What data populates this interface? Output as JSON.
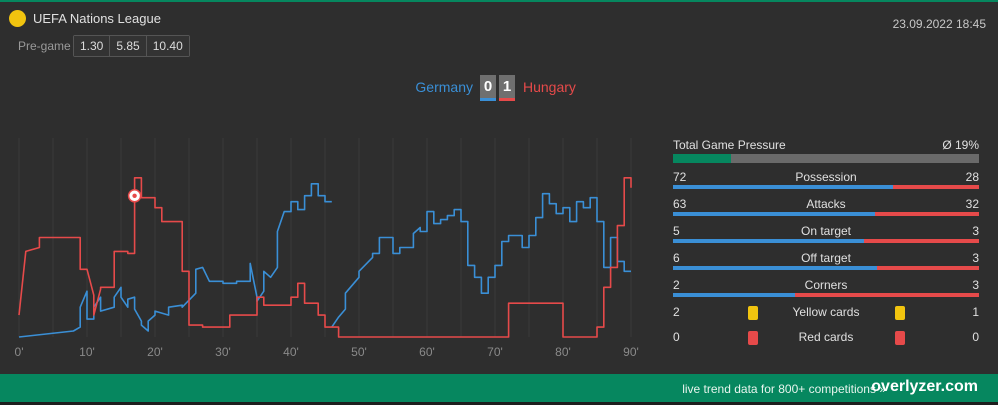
{
  "header": {
    "league": "UEFA Nations League",
    "datetime": "23.09.2022 18:45",
    "pregame_label": "Pre-game",
    "odds": [
      "1.30",
      "5.85",
      "10.40"
    ]
  },
  "match": {
    "home_team": "Germany",
    "away_team": "Hungary",
    "home_score": "0",
    "away_score": "1",
    "home_color": "#3a8fd6",
    "away_color": "#e64a4a"
  },
  "chart_data": {
    "type": "line",
    "xlabel": "",
    "ylabel": "",
    "x_ticks": [
      "0'",
      "10'",
      "20'",
      "30'",
      "40'",
      "50'",
      "60'",
      "70'",
      "80'",
      "90'"
    ],
    "xlim": [
      0,
      90
    ],
    "ylim": [
      0,
      100
    ],
    "goal_events": [
      {
        "minute": 17,
        "team": "Hungary",
        "icon": "football-icon"
      }
    ],
    "series": [
      {
        "name": "Germany",
        "color": "#3a8fd6",
        "points": [
          [
            0,
            0
          ],
          [
            8,
            3
          ],
          [
            9,
            5
          ],
          [
            9,
            15
          ],
          [
            10,
            23
          ],
          [
            10,
            9
          ],
          [
            11,
            9
          ],
          [
            11,
            15
          ],
          [
            12,
            20
          ],
          [
            12,
            13
          ],
          [
            14,
            15
          ],
          [
            14,
            20
          ],
          [
            15,
            25
          ],
          [
            15,
            20
          ],
          [
            16,
            15
          ],
          [
            16,
            19
          ],
          [
            17,
            20
          ],
          [
            17,
            14
          ],
          [
            18,
            8
          ],
          [
            18,
            6
          ],
          [
            19,
            3
          ],
          [
            19,
            8
          ],
          [
            20,
            11
          ],
          [
            20,
            13
          ],
          [
            22,
            11
          ],
          [
            22,
            15
          ],
          [
            24,
            16
          ],
          [
            24,
            15
          ],
          [
            26,
            22
          ],
          [
            26,
            28
          ],
          [
            26,
            34
          ],
          [
            27,
            35
          ],
          [
            28,
            28
          ],
          [
            30,
            28
          ],
          [
            30,
            27
          ],
          [
            32,
            27
          ],
          [
            32,
            28
          ],
          [
            34,
            28
          ],
          [
            34,
            37
          ],
          [
            35,
            20
          ],
          [
            35,
            18
          ],
          [
            36,
            23
          ],
          [
            36,
            33
          ],
          [
            37,
            30
          ],
          [
            38,
            35
          ],
          [
            38,
            53
          ],
          [
            39,
            63
          ],
          [
            40,
            63
          ],
          [
            40,
            68
          ],
          [
            41,
            68
          ],
          [
            41,
            64
          ],
          [
            42,
            64
          ],
          [
            42,
            71
          ],
          [
            43,
            71
          ],
          [
            43,
            77
          ],
          [
            44,
            77
          ],
          [
            44,
            71
          ],
          [
            45,
            71
          ],
          [
            45,
            68
          ],
          [
            46,
            68
          ]
        ]
      },
      {
        "name": "Germany",
        "color": "#3a8fd6",
        "points": [
          [
            46,
            5
          ],
          [
            47,
            10
          ],
          [
            48,
            14
          ],
          [
            48,
            22
          ],
          [
            50,
            30
          ],
          [
            50,
            33
          ],
          [
            52,
            40
          ],
          [
            52,
            42
          ],
          [
            53,
            42
          ],
          [
            53,
            50
          ],
          [
            55,
            50
          ],
          [
            55,
            42
          ],
          [
            56,
            42
          ],
          [
            56,
            45
          ],
          [
            58,
            45
          ],
          [
            58,
            52
          ],
          [
            59,
            55
          ],
          [
            59,
            53
          ],
          [
            60,
            53
          ],
          [
            60,
            63
          ],
          [
            61,
            63
          ],
          [
            61,
            57
          ],
          [
            62,
            57
          ],
          [
            62,
            59
          ],
          [
            63,
            59
          ],
          [
            63,
            61
          ],
          [
            64,
            61
          ],
          [
            64,
            64
          ],
          [
            65,
            64
          ],
          [
            65,
            58
          ],
          [
            66,
            58
          ],
          [
            66,
            36
          ],
          [
            67,
            36
          ],
          [
            67,
            30
          ],
          [
            68,
            30
          ],
          [
            68,
            22
          ],
          [
            69,
            22
          ],
          [
            69,
            30
          ],
          [
            70,
            30
          ],
          [
            70,
            36
          ],
          [
            71,
            36
          ],
          [
            71,
            48
          ],
          [
            72,
            48
          ],
          [
            72,
            51
          ],
          [
            74,
            51
          ],
          [
            74,
            45
          ],
          [
            75,
            45
          ],
          [
            75,
            51
          ],
          [
            76,
            51
          ],
          [
            76,
            60
          ],
          [
            77,
            60
          ],
          [
            77,
            72
          ],
          [
            78,
            72
          ],
          [
            78,
            67
          ],
          [
            79,
            67
          ],
          [
            79,
            62
          ],
          [
            80,
            62
          ],
          [
            80,
            65
          ],
          [
            81,
            65
          ],
          [
            81,
            58
          ],
          [
            82,
            58
          ],
          [
            82,
            68
          ],
          [
            83,
            68
          ],
          [
            83,
            65
          ],
          [
            84,
            65
          ],
          [
            84,
            70
          ],
          [
            85,
            70
          ],
          [
            85,
            58
          ],
          [
            86,
            58
          ],
          [
            86,
            35
          ],
          [
            87,
            35
          ],
          [
            87,
            50
          ],
          [
            88,
            50
          ],
          [
            88,
            38
          ],
          [
            89,
            38
          ],
          [
            89,
            33
          ],
          [
            90,
            33
          ]
        ]
      },
      {
        "name": "Hungary",
        "color": "#e64a4a",
        "points": [
          [
            0,
            11
          ],
          [
            1,
            43
          ],
          [
            3,
            45
          ],
          [
            3,
            50
          ],
          [
            9,
            50
          ],
          [
            9,
            47
          ],
          [
            9,
            34
          ],
          [
            10,
            34
          ],
          [
            11,
            21
          ],
          [
            11,
            11
          ],
          [
            12,
            24
          ],
          [
            12,
            25
          ],
          [
            14,
            25
          ],
          [
            14,
            43
          ],
          [
            16,
            43
          ],
          [
            16,
            42
          ],
          [
            17,
            42
          ],
          [
            17,
            60
          ],
          [
            17,
            80
          ],
          [
            18,
            80
          ],
          [
            18,
            70
          ],
          [
            20,
            70
          ],
          [
            20,
            65
          ],
          [
            21,
            65
          ],
          [
            21,
            58
          ],
          [
            24,
            58
          ],
          [
            24,
            33
          ],
          [
            25,
            33
          ],
          [
            25,
            6
          ],
          [
            27,
            6
          ],
          [
            27,
            5
          ],
          [
            31,
            5
          ],
          [
            31,
            11
          ],
          [
            35,
            11
          ],
          [
            35,
            20
          ],
          [
            36,
            20
          ],
          [
            36,
            16
          ],
          [
            40,
            16
          ],
          [
            40,
            20
          ],
          [
            41,
            20
          ],
          [
            41,
            27
          ],
          [
            42,
            27
          ],
          [
            42,
            17
          ],
          [
            44,
            17
          ],
          [
            44,
            11
          ],
          [
            45,
            11
          ],
          [
            45,
            5
          ],
          [
            47,
            5
          ],
          [
            47,
            0
          ],
          [
            72,
            0
          ],
          [
            72,
            17
          ],
          [
            80,
            17
          ],
          [
            80,
            0
          ],
          [
            85,
            0
          ],
          [
            85,
            5
          ],
          [
            86,
            5
          ],
          [
            86,
            25
          ],
          [
            87,
            25
          ],
          [
            87,
            35
          ],
          [
            88,
            35
          ],
          [
            88,
            56
          ],
          [
            89,
            56
          ],
          [
            89,
            80
          ],
          [
            90,
            80
          ],
          [
            90,
            75
          ]
        ]
      }
    ]
  },
  "stats": {
    "pressure_label": "Total Game Pressure",
    "pressure_value": "Ø 19%",
    "pressure_fraction": 0.19,
    "rows": [
      {
        "home": "72",
        "label": "Possession",
        "away": "28",
        "home_share": 0.72
      },
      {
        "home": "63",
        "label": "Attacks",
        "away": "32",
        "home_share": 0.66
      },
      {
        "home": "5",
        "label": "On target",
        "away": "3",
        "home_share": 0.625
      },
      {
        "home": "6",
        "label": "Off target",
        "away": "3",
        "home_share": 0.667
      },
      {
        "home": "2",
        "label": "Corners",
        "away": "3",
        "home_share": 0.4
      }
    ],
    "cards": [
      {
        "home": "2",
        "label": "Yellow cards",
        "away": "1",
        "color": "#f1c40f",
        "icon": "yellow-card-icon"
      },
      {
        "home": "0",
        "label": "Red cards",
        "away": "0",
        "color": "#e64a4a",
        "icon": "red-card-icon"
      }
    ]
  },
  "footer": {
    "text": "live trend data for 800+ competitions »",
    "brand": "overlyzer.com"
  }
}
